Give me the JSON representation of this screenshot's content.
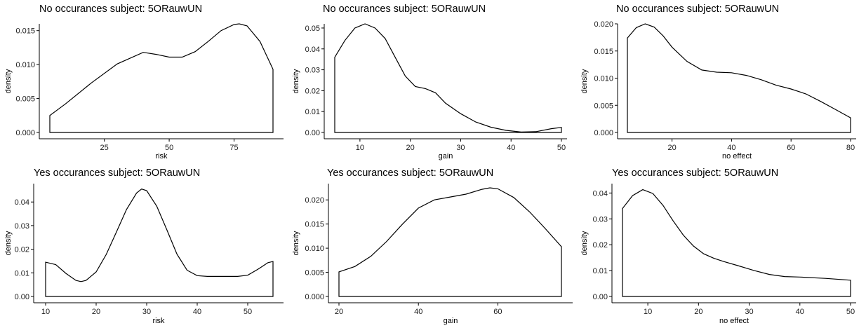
{
  "chart_data": [
    {
      "type": "area",
      "title": "No occurances subject:  5ORauwUN",
      "xlabel": "risk",
      "ylabel": "density",
      "xlim": [
        4.0,
        90.0
      ],
      "ylim": [
        0,
        0.016
      ],
      "xticks": [
        25,
        50,
        75
      ],
      "yticks": [
        0.0,
        0.005,
        0.01,
        0.015
      ],
      "ytick_labels": [
        "0.000",
        "0.005",
        "0.010",
        "0.015"
      ],
      "x": [
        4.0,
        10,
        20,
        30,
        40,
        45,
        50,
        55,
        60,
        65,
        70,
        75,
        77,
        80,
        85,
        90.0
      ],
      "y": [
        0.0025,
        0.0042,
        0.0073,
        0.0101,
        0.0118,
        0.0115,
        0.0111,
        0.0111,
        0.0119,
        0.0134,
        0.015,
        0.0159,
        0.016,
        0.0157,
        0.0134,
        0.0093
      ]
    },
    {
      "type": "area",
      "title": "No occurances subject:  5ORauwUN",
      "xlabel": "gain",
      "ylabel": "density",
      "xlim": [
        5.0,
        50.0
      ],
      "ylim": [
        0,
        0.052
      ],
      "xticks": [
        10,
        20,
        30,
        40,
        50
      ],
      "yticks": [
        0.0,
        0.01,
        0.02,
        0.03,
        0.04,
        0.05
      ],
      "ytick_labels": [
        "0.00",
        "0.01",
        "0.02",
        "0.03",
        "0.04",
        "0.05"
      ],
      "x": [
        5.0,
        7,
        9,
        11,
        13,
        15,
        17,
        19,
        21,
        23,
        25,
        27,
        30,
        33,
        36,
        39,
        42,
        45,
        48,
        50.0
      ],
      "y": [
        0.036,
        0.044,
        0.05,
        0.052,
        0.05,
        0.045,
        0.036,
        0.027,
        0.022,
        0.021,
        0.019,
        0.014,
        0.009,
        0.005,
        0.0025,
        0.001,
        0.0002,
        0.0004,
        0.0018,
        0.0024
      ]
    },
    {
      "type": "area",
      "title": "No occurances subject:  5ORauwUN",
      "xlabel": "no effect",
      "ylabel": "density",
      "xlim": [
        5.0,
        80.0
      ],
      "ylim": [
        0,
        0.02
      ],
      "xticks": [
        20,
        40,
        60,
        80
      ],
      "yticks": [
        0.0,
        0.005,
        0.01,
        0.015,
        0.02
      ],
      "ytick_labels": [
        "0.000",
        "0.005",
        "0.010",
        "0.015",
        "0.020"
      ],
      "x": [
        5.0,
        8,
        11,
        14,
        17,
        20,
        25,
        30,
        35,
        40,
        45,
        50,
        55,
        60,
        65,
        70,
        75,
        80.0
      ],
      "y": [
        0.0174,
        0.0193,
        0.02,
        0.0194,
        0.0178,
        0.0157,
        0.0131,
        0.0115,
        0.0111,
        0.011,
        0.0105,
        0.0097,
        0.0087,
        0.008,
        0.0071,
        0.0057,
        0.0042,
        0.0027
      ]
    },
    {
      "type": "area",
      "title": "Yes occurances subject:  5ORauwUN",
      "xlabel": "risk",
      "ylabel": "density",
      "xlim": [
        10.0,
        55.0
      ],
      "ylim": [
        0,
        0.046
      ],
      "xticks": [
        10,
        20,
        30,
        40,
        50
      ],
      "yticks": [
        0.0,
        0.01,
        0.02,
        0.03,
        0.04
      ],
      "ytick_labels": [
        "0.00",
        "0.01",
        "0.02",
        "0.03",
        "0.04"
      ],
      "x": [
        10.0,
        12,
        14,
        16,
        17,
        18,
        20,
        22,
        24,
        26,
        28,
        29,
        30,
        32,
        34,
        36,
        38,
        40,
        42,
        45,
        48,
        50,
        52,
        54,
        55.0
      ],
      "y": [
        0.0145,
        0.0135,
        0.0098,
        0.0068,
        0.0063,
        0.0068,
        0.0104,
        0.0178,
        0.0272,
        0.0368,
        0.0438,
        0.0455,
        0.0448,
        0.0382,
        0.0282,
        0.0179,
        0.0111,
        0.0088,
        0.0085,
        0.0085,
        0.0085,
        0.009,
        0.0115,
        0.0143,
        0.0148
      ]
    },
    {
      "type": "area",
      "title": "Yes occurances subject:  5ORauwUN",
      "xlabel": "gain",
      "ylabel": "density",
      "xlim": [
        20.0,
        76.0
      ],
      "ylim": [
        0,
        0.0225
      ],
      "xticks": [
        20,
        40,
        60
      ],
      "yticks": [
        0.0,
        0.005,
        0.01,
        0.015,
        0.02
      ],
      "ytick_labels": [
        "0.000",
        "0.005",
        "0.010",
        "0.015",
        "0.020"
      ],
      "x": [
        20.0,
        24,
        28,
        32,
        36,
        40,
        44,
        48,
        52,
        56,
        58,
        60,
        64,
        68,
        72,
        76.0
      ],
      "y": [
        0.0051,
        0.0062,
        0.0083,
        0.0114,
        0.015,
        0.0183,
        0.02,
        0.0206,
        0.0212,
        0.0222,
        0.0225,
        0.0223,
        0.0205,
        0.0175,
        0.014,
        0.0103
      ]
    },
    {
      "type": "area",
      "title": "Yes occurances subject:  5ORauwUN",
      "xlabel": "no effect",
      "ylabel": "density",
      "xlim": [
        5.0,
        50.0
      ],
      "ylim": [
        0,
        0.042
      ],
      "xticks": [
        10,
        20,
        30,
        40,
        50
      ],
      "yticks": [
        0.0,
        0.01,
        0.02,
        0.03,
        0.04
      ],
      "ytick_labels": [
        "0.00",
        "0.01",
        "0.02",
        "0.03",
        "0.04"
      ],
      "x": [
        5.0,
        7,
        9,
        11,
        13,
        15,
        17,
        19,
        21,
        23,
        25,
        28,
        31,
        34,
        37,
        40,
        45,
        50.0
      ],
      "y": [
        0.034,
        0.039,
        0.0413,
        0.0398,
        0.0352,
        0.0292,
        0.0237,
        0.0195,
        0.0165,
        0.0148,
        0.0135,
        0.0118,
        0.01,
        0.0085,
        0.0077,
        0.0075,
        0.007,
        0.0063
      ]
    }
  ]
}
